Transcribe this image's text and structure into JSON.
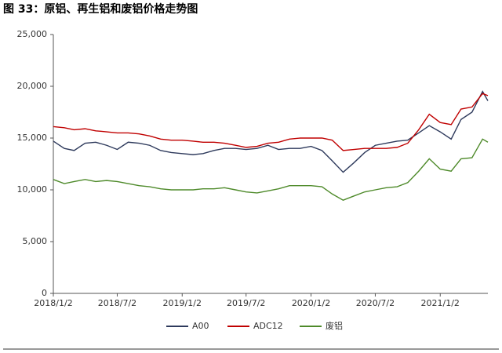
{
  "chart_data": {
    "type": "line",
    "title": "图 33：原铝、再生铝和废铝价格走势图",
    "x": [
      "2018/1/2",
      "2018/2/2",
      "2018/3/2",
      "2018/4/2",
      "2018/5/2",
      "2018/6/2",
      "2018/7/2",
      "2018/8/2",
      "2018/9/2",
      "2018/10/2",
      "2018/11/2",
      "2018/12/2",
      "2019/1/2",
      "2019/2/2",
      "2019/3/2",
      "2019/4/2",
      "2019/5/2",
      "2019/6/2",
      "2019/7/2",
      "2019/8/2",
      "2019/9/2",
      "2019/10/2",
      "2019/11/2",
      "2019/12/2",
      "2020/1/2",
      "2020/2/2",
      "2020/3/2",
      "2020/4/2",
      "2020/5/2",
      "2020/6/2",
      "2020/7/2",
      "2020/8/2",
      "2020/9/2",
      "2020/10/2",
      "2020/11/2",
      "2020/12/2",
      "2021/1/2",
      "2021/2/2",
      "2021/3/2",
      "2021/4/2",
      "2021/5/2",
      "2021/5/17"
    ],
    "series": [
      {
        "name": "A00",
        "color": "#2e3a5c",
        "values": [
          14700,
          14000,
          13800,
          14500,
          14600,
          14300,
          13900,
          14600,
          14500,
          14300,
          13800,
          13600,
          13500,
          13400,
          13500,
          13800,
          14000,
          14000,
          13900,
          14000,
          14300,
          13900,
          14000,
          14000,
          14200,
          13800,
          12800,
          11700,
          12600,
          13600,
          14300,
          14500,
          14700,
          14800,
          15500,
          16200,
          15600,
          14900,
          16800,
          17500,
          19500,
          18600
        ]
      },
      {
        "name": "ADC12",
        "color": "#c00000",
        "values": [
          16100,
          16000,
          15800,
          15900,
          15700,
          15600,
          15500,
          15500,
          15400,
          15200,
          14900,
          14800,
          14800,
          14700,
          14600,
          14600,
          14500,
          14300,
          14100,
          14200,
          14500,
          14600,
          14900,
          15000,
          15000,
          15000,
          14800,
          13800,
          13900,
          14000,
          14000,
          14000,
          14100,
          14500,
          15800,
          17300,
          16500,
          16300,
          17800,
          18000,
          19300,
          19100
        ]
      },
      {
        "name": "废铝",
        "color": "#4e8a2a",
        "values": [
          11000,
          10600,
          10800,
          11000,
          10800,
          10900,
          10800,
          10600,
          10400,
          10300,
          10100,
          10000,
          10000,
          10000,
          10100,
          10100,
          10200,
          10000,
          9800,
          9700,
          9900,
          10100,
          10400,
          10400,
          10400,
          10300,
          9600,
          9000,
          9400,
          9800,
          10000,
          10200,
          10300,
          10700,
          11800,
          13000,
          12000,
          11800,
          13000,
          13100,
          14900,
          14600
        ]
      }
    ],
    "xlim": [
      "2018/1/2",
      "2021/5/17"
    ],
    "xticks": [
      "2018/1/2",
      "2018/7/2",
      "2019/1/2",
      "2019/7/2",
      "2020/1/2",
      "2020/7/2",
      "2021/1/2"
    ],
    "ylim": [
      0,
      25000
    ],
    "yticks": [
      0,
      {
        "value": 5000,
        "label": "5,000"
      },
      {
        "value": 10000,
        "label": "10,000"
      },
      {
        "value": 15000,
        "label": "15,000"
      },
      {
        "value": 20000,
        "label": "20,000"
      },
      {
        "value": 25000,
        "label": "25,000"
      }
    ],
    "grid": false,
    "legend": "bottom"
  }
}
